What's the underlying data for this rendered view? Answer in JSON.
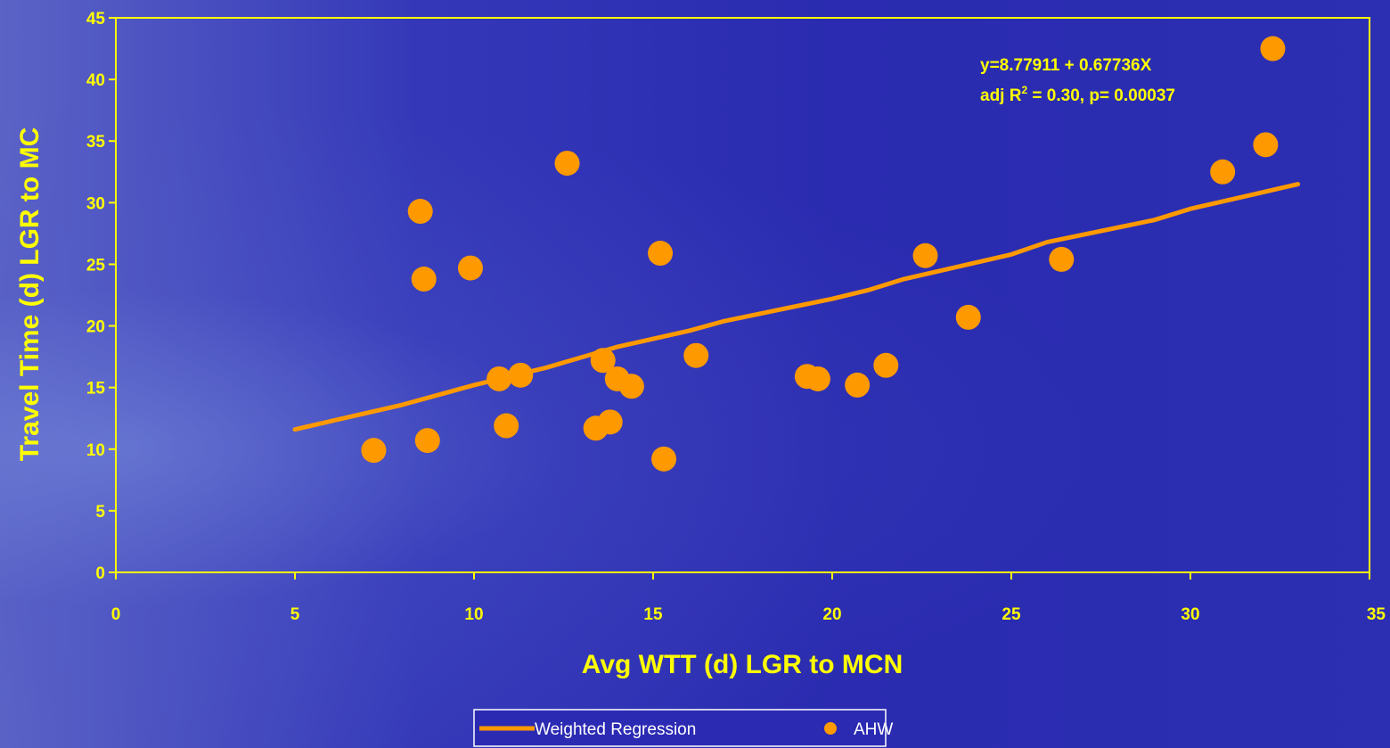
{
  "chart_data": {
    "type": "scatter",
    "xlabel": "Avg WTT (d) LGR to MCN",
    "ylabel": "Travel Time (d) LGR to MC",
    "xlim": [
      0,
      35
    ],
    "ylim": [
      0,
      45
    ],
    "xticks": [
      "0",
      "5",
      "10",
      "15",
      "20",
      "25",
      "30",
      "35"
    ],
    "yticks": [
      "0",
      "5",
      "10",
      "15",
      "20",
      "25",
      "30",
      "35",
      "40",
      "45"
    ],
    "annotation": {
      "line1": "y=8.77911 + 0.67736X",
      "line2_prefix": "adj R",
      "line2_sup": "2",
      "line2_suffix": " = 0.30, p= 0.00037"
    },
    "legend": {
      "placement": "bottom-center",
      "regression_label": "Weighted Regression",
      "points_label": "AHW"
    },
    "colors": {
      "axis": "#ffff00",
      "series": "#ff9900",
      "legend_bg": "#2b2ab3"
    },
    "regression": {
      "name": "Weighted Regression",
      "x": [
        5,
        8,
        10,
        12,
        14,
        16,
        17,
        20,
        21,
        22,
        25,
        26,
        29,
        30,
        33
      ],
      "y": [
        11.6,
        13.6,
        15.2,
        16.6,
        18.3,
        19.6,
        20.4,
        22.2,
        22.9,
        23.8,
        25.8,
        26.8,
        28.6,
        29.5,
        31.5
      ]
    },
    "series": [
      {
        "name": "AHW",
        "x": [
          7.2,
          8.5,
          8.6,
          8.7,
          9.9,
          10.7,
          10.9,
          11.3,
          12.6,
          13.4,
          13.6,
          13.8,
          14.0,
          14.4,
          15.2,
          15.3,
          16.2,
          19.3,
          19.6,
          20.7,
          21.5,
          22.6,
          23.8,
          26.4,
          30.9,
          32.1,
          32.3
        ],
        "y": [
          9.9,
          29.3,
          23.8,
          10.7,
          24.7,
          15.7,
          11.9,
          16.0,
          33.2,
          11.7,
          17.2,
          12.2,
          15.7,
          15.1,
          25.9,
          9.2,
          17.6,
          15.9,
          15.7,
          15.2,
          16.8,
          25.7,
          20.7,
          25.4,
          32.5,
          34.7,
          42.5
        ]
      }
    ]
  }
}
